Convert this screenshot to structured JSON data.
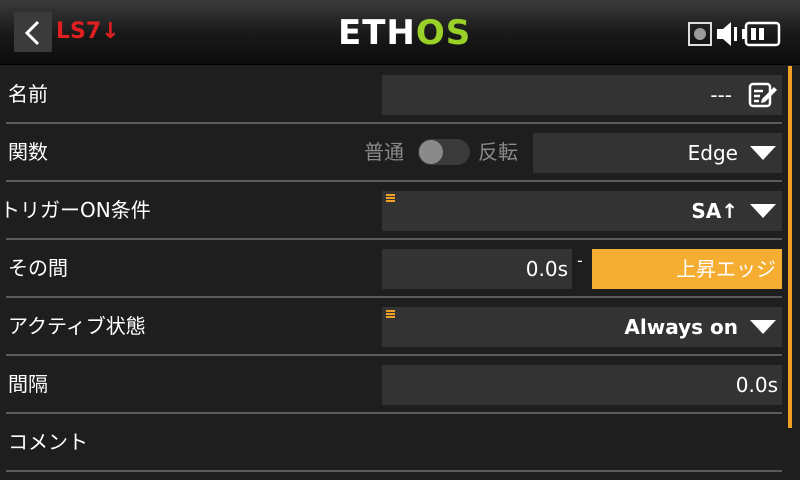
{
  "header": {
    "switch_name": "LS7↓",
    "logo_part1": "ETH",
    "logo_part2": "OS",
    "icons": [
      "back-arrow-icon",
      "sd-card-icon",
      "speaker-icon",
      "battery-icon"
    ]
  },
  "rows": {
    "name": {
      "label": "名前",
      "value": "---"
    },
    "function": {
      "label": "関数",
      "normal": "普通",
      "invert": "反転",
      "invert_on": false,
      "value": "Edge"
    },
    "trigger": {
      "label": "トリガーON条件",
      "value": "SA↑"
    },
    "duration": {
      "label": "その間",
      "min": "0.0s",
      "dash": "-",
      "max": "上昇エッジ"
    },
    "active": {
      "label": "アクティブ状態",
      "value": "Always on"
    },
    "delay": {
      "label": "間隔",
      "value": "0.0s"
    },
    "comment": {
      "label": "コメント"
    }
  },
  "colors": {
    "accent": "#f0a020",
    "logo_green": "#9ad128",
    "switch_red": "#e02020",
    "field_bg": "#333333",
    "background": "#1e1e1e"
  }
}
